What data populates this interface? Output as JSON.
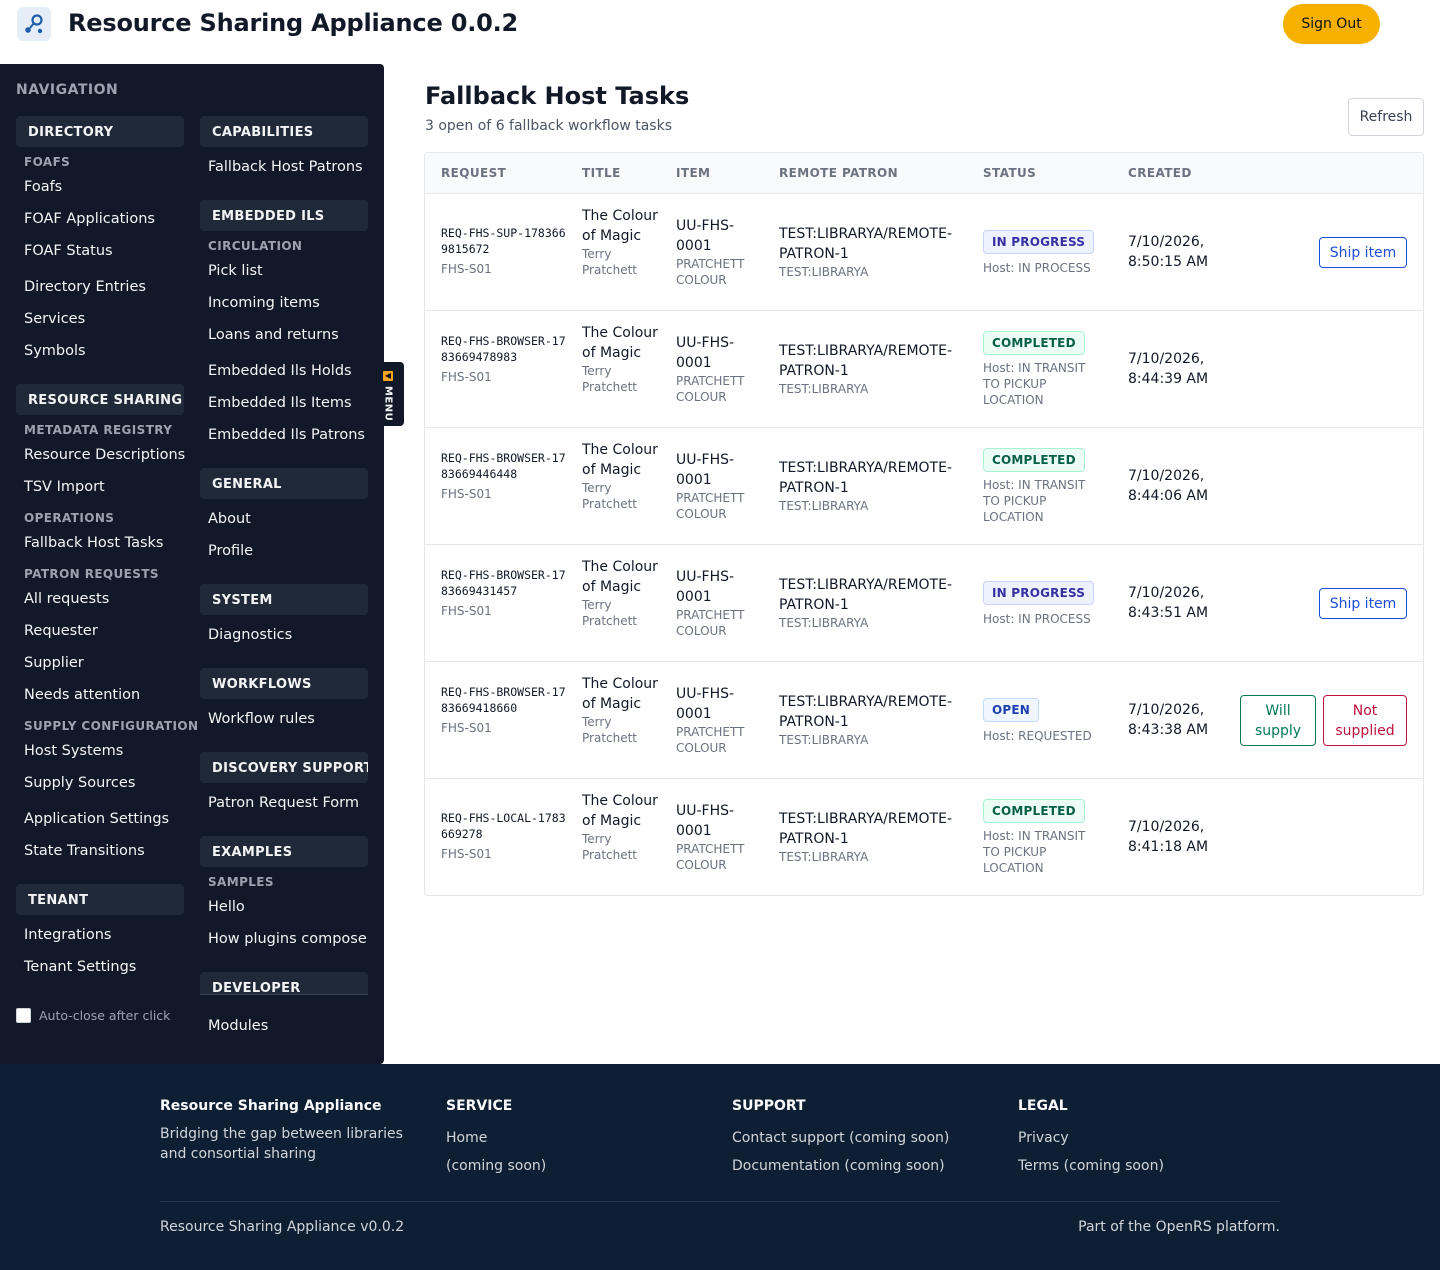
{
  "header": {
    "app_title": "Resource Sharing Appliance 0.0.2",
    "sign_out_label": "Sign Out",
    "logo_icon": "share-nodes-icon",
    "accent_color": "#f5b000"
  },
  "sidebar": {
    "title": "NAVIGATION",
    "left": {
      "directory": "DIRECTORY",
      "foafs_sub": "FOAFS",
      "foafs": "Foafs",
      "foaf_applications": "FOAF Applications",
      "foaf_status": "FOAF Status",
      "directory_entries": "Directory Entries",
      "services": "Services",
      "symbols": "Symbols",
      "resource_sharing": "RESOURCE SHARING",
      "metadata_registry": "METADATA REGISTRY",
      "resource_descriptions": "Resource Descriptions",
      "tsv_import": "TSV Import",
      "operations": "OPERATIONS",
      "fallback_host_tasks": "Fallback Host Tasks",
      "patron_requests": "PATRON REQUESTS",
      "all_requests": "All requests",
      "requester": "Requester",
      "supplier": "Supplier",
      "needs_attention": "Needs attention",
      "supply_configuration": "SUPPLY CONFIGURATION",
      "host_systems": "Host Systems",
      "supply_sources": "Supply Sources",
      "application_settings": "Application Settings",
      "state_transitions": "State Transitions",
      "tenant": "TENANT",
      "integrations": "Integrations",
      "tenant_settings": "Tenant Settings"
    },
    "right": {
      "capabilities": "CAPABILITIES",
      "fallback_host_patrons": "Fallback Host Patrons",
      "embedded_ils": "EMBEDDED ILS",
      "circulation": "CIRCULATION",
      "pick_list": "Pick list",
      "incoming_items": "Incoming items",
      "loans_and_returns": "Loans and returns",
      "embedded_ils_holds": "Embedded Ils Holds",
      "embedded_ils_items": "Embedded Ils Items",
      "embedded_ils_patrons": "Embedded Ils Patrons",
      "general": "GENERAL",
      "about": "About",
      "profile": "Profile",
      "system": "SYSTEM",
      "diagnostics": "Diagnostics",
      "workflows": "WORKFLOWS",
      "workflow_rules": "Workflow rules",
      "discovery_support": "DISCOVERY SUPPORT",
      "patron_request_form": "Patron Request Form",
      "examples": "EXAMPLES",
      "samples": "SAMPLES",
      "hello": "Hello",
      "how_plugins_compose": "How plugins compose",
      "developer": "DEVELOPER",
      "modules": "Modules"
    },
    "auto_close_label": "Auto-close after click",
    "menu_tab_label": "MENU"
  },
  "main": {
    "title": "Fallback Host Tasks",
    "subtitle": "3 open of 6 fallback workflow tasks",
    "refresh_label": "Refresh",
    "columns": [
      "REQUEST",
      "TITLE",
      "ITEM",
      "REMOTE PATRON",
      "STATUS",
      "CREATED"
    ],
    "rows": [
      {
        "request_id": "REQ-FHS-SUP-1783669815672",
        "request_sub": "FHS-S01",
        "title": "The Colour of Magic",
        "author": "Terry Pratchett",
        "item": "UU-FHS-0001",
        "item_sub": "PRATCHETT COLOUR",
        "patron": "TEST:LIBRARYA/REMOTE-PATRON-1",
        "patron_sub": "TEST:LIBRARYA",
        "status": "IN PROGRESS",
        "status_sub": "Host: IN PROCESS",
        "created": "7/10/2026, 8:50:15 AM",
        "action": "Ship item"
      },
      {
        "request_id": "REQ-FHS-BROWSER-1783669478983",
        "request_sub": "FHS-S01",
        "title": "The Colour of Magic",
        "author": "Terry Pratchett",
        "item": "UU-FHS-0001",
        "item_sub": "PRATCHETT COLOUR",
        "patron": "TEST:LIBRARYA/REMOTE-PATRON-1",
        "patron_sub": "TEST:LIBRARYA",
        "status": "COMPLETED",
        "status_sub": "Host: IN TRANSIT TO PICKUP LOCATION",
        "created": "7/10/2026, 8:44:39 AM"
      },
      {
        "request_id": "REQ-FHS-BROWSER-1783669446448",
        "request_sub": "FHS-S01",
        "title": "The Colour of Magic",
        "author": "Terry Pratchett",
        "item": "UU-FHS-0001",
        "item_sub": "PRATCHETT COLOUR",
        "patron": "TEST:LIBRARYA/REMOTE-PATRON-1",
        "patron_sub": "TEST:LIBRARYA",
        "status": "COMPLETED",
        "status_sub": "Host: IN TRANSIT TO PICKUP LOCATION",
        "created": "7/10/2026, 8:44:06 AM"
      },
      {
        "request_id": "REQ-FHS-BROWSER-1783669431457",
        "request_sub": "FHS-S01",
        "title": "The Colour of Magic",
        "author": "Terry Pratchett",
        "item": "UU-FHS-0001",
        "item_sub": "PRATCHETT COLOUR",
        "patron": "TEST:LIBRARYA/REMOTE-PATRON-1",
        "patron_sub": "TEST:LIBRARYA",
        "status": "IN PROGRESS",
        "status_sub": "Host: IN PROCESS",
        "created": "7/10/2026, 8:43:51 AM",
        "action": "Ship item"
      },
      {
        "request_id": "REQ-FHS-BROWSER-1783669418660",
        "request_sub": "FHS-S01",
        "title": "The Colour of Magic",
        "author": "Terry Pratchett",
        "item": "UU-FHS-0001",
        "item_sub": "PRATCHETT COLOUR",
        "patron": "TEST:LIBRARYA/REMOTE-PATRON-1",
        "patron_sub": "TEST:LIBRARYA",
        "status": "OPEN",
        "status_sub": "Host: REQUESTED",
        "created": "7/10/2026, 8:43:38 AM",
        "action_yes": "Will supply",
        "action_no": "Not supplied"
      },
      {
        "request_id": "REQ-FHS-LOCAL-1783669278",
        "request_sub": "FHS-S01",
        "title": "The Colour of Magic",
        "author": "Terry Pratchett",
        "item": "UU-FHS-0001",
        "item_sub": "PRATCHETT COLOUR",
        "patron": "TEST:LIBRARYA/REMOTE-PATRON-1",
        "patron_sub": "TEST:LIBRARYA",
        "status": "COMPLETED",
        "status_sub": "Host: IN TRANSIT TO PICKUP LOCATION",
        "created": "7/10/2026, 8:41:18 AM"
      }
    ]
  },
  "footer": {
    "brand": "Resource Sharing Appliance",
    "tagline": "Bridging the gap between libraries and consortial sharing",
    "service_head": "SERVICE",
    "service_links": [
      "Home",
      "(coming soon)"
    ],
    "support_head": "SUPPORT",
    "support_links": [
      "Contact support (coming soon)",
      "Documentation (coming soon)"
    ],
    "legal_head": "LEGAL",
    "legal_links": [
      "Privacy",
      "Terms (coming soon)"
    ],
    "version": "Resource Sharing Appliance v0.0.2",
    "platform": "Part of the OpenRS platform."
  }
}
